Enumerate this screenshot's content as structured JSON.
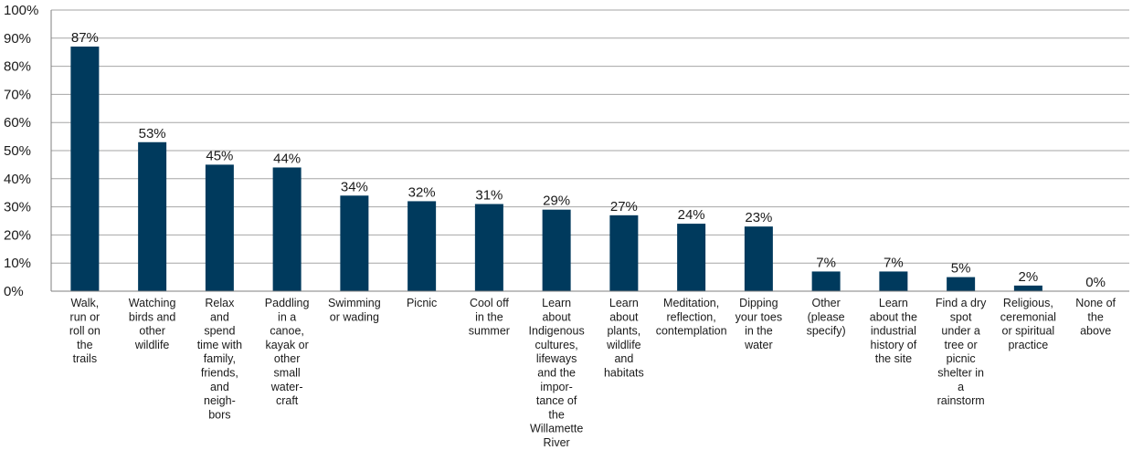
{
  "colors": {
    "bar": "#003a5d",
    "grid": "#a6a6a6",
    "axis": "#7f7f7f",
    "text": "#1a1a1a"
  },
  "chart_data": {
    "type": "bar",
    "title": "",
    "xlabel": "",
    "ylabel": "",
    "ylim": [
      0,
      100
    ],
    "y_ticks": [
      0,
      10,
      20,
      30,
      40,
      50,
      60,
      70,
      80,
      90,
      100
    ],
    "y_tick_labels": [
      "0%",
      "10%",
      "20%",
      "30%",
      "40%",
      "50%",
      "60%",
      "70%",
      "80%",
      "90%",
      "100%"
    ],
    "grid": true,
    "legend": "none",
    "categories": [
      [
        "Walk,",
        "run or",
        "roll on",
        "the",
        "trails"
      ],
      [
        "Watching",
        "birds and",
        "other",
        "wildlife"
      ],
      [
        "Relax",
        "and",
        "spend",
        "time with",
        "family,",
        "friends,",
        "and",
        "neigh-",
        "bors"
      ],
      [
        "Paddling",
        "in a",
        "canoe,",
        "kayak or",
        "other",
        "small",
        "water-",
        "craft"
      ],
      [
        "Swimming",
        "or wading"
      ],
      [
        "Picnic"
      ],
      [
        "Cool off",
        "in the",
        "summer"
      ],
      [
        "Learn",
        "about",
        "Indigenous",
        "cultures,",
        "lifeways",
        "and the",
        "impor-",
        "tance of",
        "the",
        "Willamette",
        "River"
      ],
      [
        "Learn",
        "about",
        "plants,",
        "wildlife",
        "and",
        "habitats"
      ],
      [
        "Meditation,",
        "reflection,",
        "contemplation"
      ],
      [
        "Dipping",
        "your toes",
        "in the",
        "water"
      ],
      [
        "Other",
        "(please",
        "specify)"
      ],
      [
        "Learn",
        "about the",
        "industrial",
        "history of",
        "the site"
      ],
      [
        "Find a dry",
        "spot",
        "under a",
        "tree or",
        "picnic",
        "shelter in",
        "a",
        "rainstorm"
      ],
      [
        "Religious,",
        "ceremonial",
        "or spiritual",
        "practice"
      ],
      [
        "None of",
        "the",
        "above"
      ]
    ],
    "values": [
      87,
      53,
      45,
      44,
      34,
      32,
      31,
      29,
      27,
      24,
      23,
      7,
      7,
      5,
      2,
      0
    ],
    "value_labels": [
      "87%",
      "53%",
      "45%",
      "44%",
      "34%",
      "32%",
      "31%",
      "29%",
      "27%",
      "24%",
      "23%",
      "7%",
      "7%",
      "5%",
      "2%",
      "0%"
    ]
  }
}
